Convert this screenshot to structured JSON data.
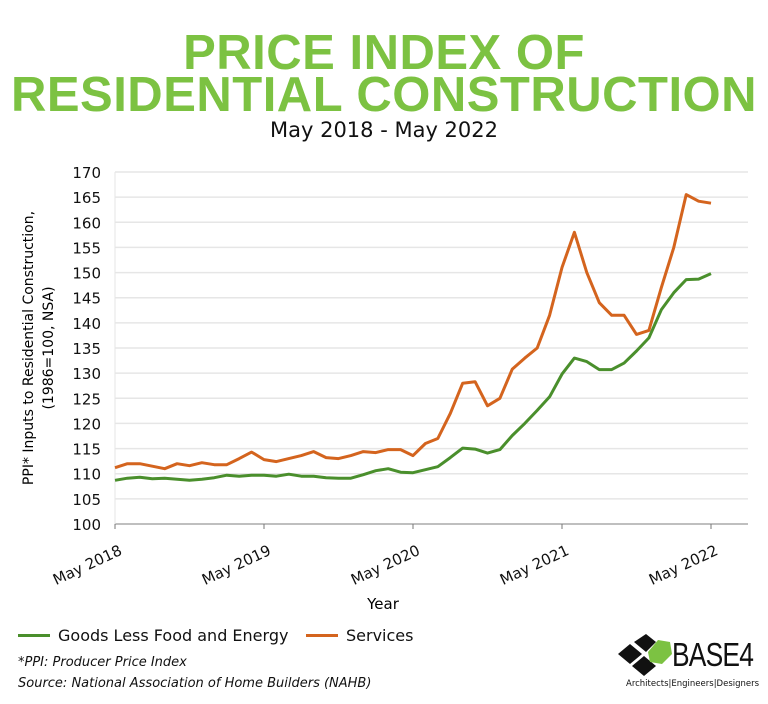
{
  "header": {
    "title_line1": "PRICE INDEX OF",
    "title_line2": "RESIDENTIAL CONSTRUCTION",
    "subtitle": "May 2018 - May 2022"
  },
  "chart_data": {
    "type": "line",
    "title": "PRICE INDEX OF RESIDENTIAL CONSTRUCTION",
    "subtitle": "May 2018 - May 2022",
    "xlabel": "Year",
    "ylabel_line1": "PPI* Inputs to Residential Construction,",
    "ylabel_line2": "(1986=100, NSA)",
    "ylim": [
      100,
      170
    ],
    "yticks": [
      100,
      105,
      110,
      115,
      120,
      125,
      130,
      135,
      140,
      145,
      150,
      155,
      160,
      165,
      170
    ],
    "xticks": [
      "May 2018",
      "May 2019",
      "May 2020",
      "May 2021",
      "May 2022"
    ],
    "x_start": "May 2018",
    "x_end": "May 2022",
    "x_frequency": "monthly",
    "grid": true,
    "legend": "bottom-left",
    "series": [
      {
        "name": "Goods Less Food and Energy",
        "color": "#4a8f2c",
        "values": [
          108.7,
          109.1,
          109.3,
          109,
          109.1,
          108.9,
          108.7,
          108.9,
          109.2,
          109.7,
          109.5,
          109.7,
          109.7,
          109.5,
          109.9,
          109.5,
          109.5,
          109.2,
          109.1,
          109.1,
          109.8,
          110.6,
          111,
          110.3,
          110.2,
          110.8,
          111.4,
          113.2,
          115.1,
          114.9,
          114.1,
          114.8,
          117.6,
          120,
          122.6,
          125.3,
          129.8,
          133,
          132.3,
          130.7,
          130.7,
          132,
          134.4,
          137,
          142.6,
          146,
          148.6,
          148.7,
          149.8
        ]
      },
      {
        "name": "Services",
        "color": "#d4641e",
        "values": [
          111.2,
          112,
          112,
          111.5,
          111,
          112,
          111.6,
          112.2,
          111.8,
          111.8,
          113,
          114.3,
          112.8,
          112.4,
          113,
          113.6,
          114.4,
          113.2,
          113,
          113.6,
          114.4,
          114.2,
          114.8,
          114.8,
          113.6,
          116,
          117,
          122,
          128,
          128.3,
          123.5,
          125,
          130.8,
          133,
          135,
          141.5,
          151,
          158,
          150,
          144,
          141.5,
          141.5,
          137.7,
          138.5,
          147,
          155,
          165.5,
          164.2,
          163.8
        ]
      }
    ]
  },
  "footnotes": {
    "ppi": "*PPI: Producer Price Index",
    "source": "Source: National Association of Home Builders (NAHB)"
  },
  "logo": {
    "name": "BASE4",
    "tagline": "Architects|Engineers|Designers",
    "accent": "#7cc242"
  }
}
